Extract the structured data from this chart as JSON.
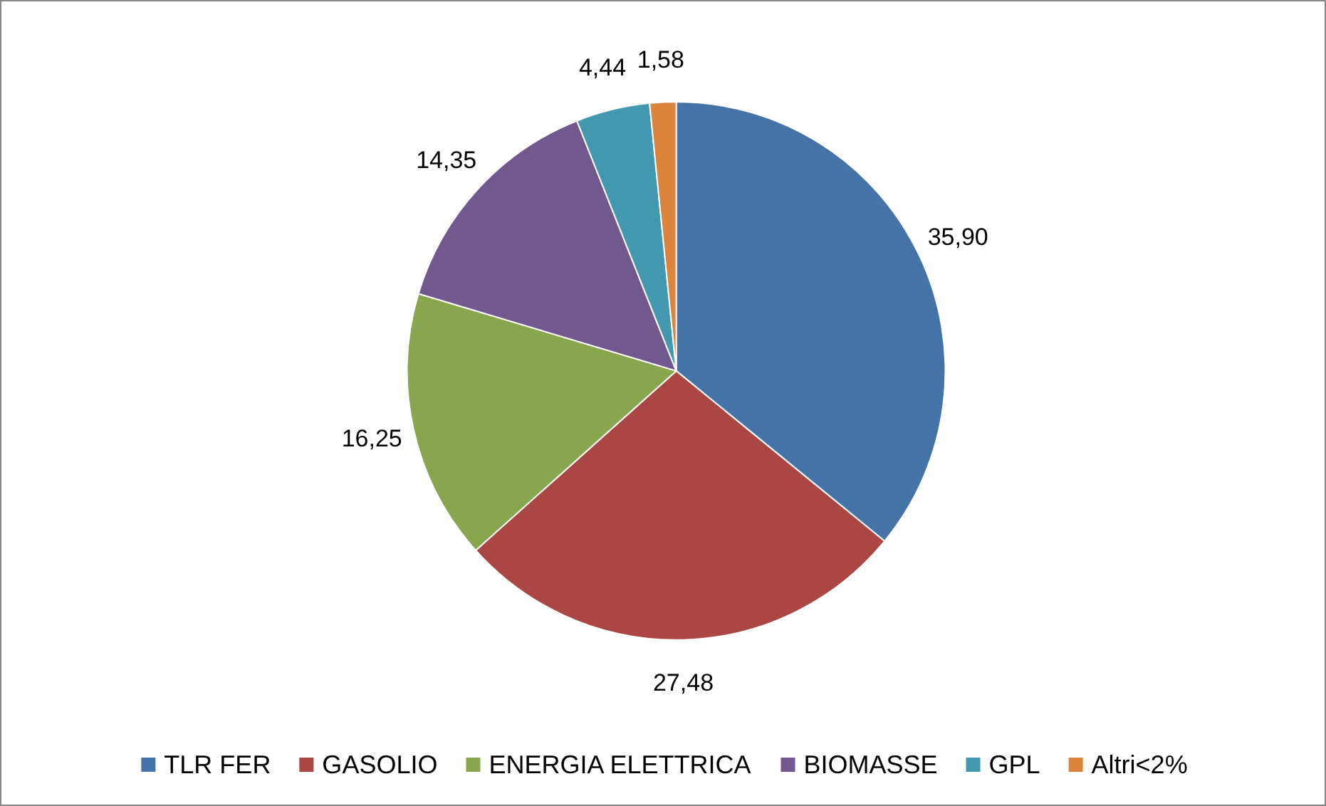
{
  "chart_data": {
    "type": "pie",
    "categories": [
      "TLR FER",
      "GASOLIO",
      "ENERGIA ELETTRICA",
      "BIOMASSE",
      "GPL",
      "Altri<2%"
    ],
    "values": [
      35.9,
      27.48,
      16.25,
      14.35,
      4.44,
      1.58
    ],
    "value_labels": [
      "35,90",
      "27,48",
      "16,25",
      "14,35",
      "4,44",
      "1,58"
    ],
    "colors": [
      "#4572a7",
      "#aa4643",
      "#89a54e",
      "#71588f",
      "#4198af",
      "#db843d"
    ],
    "legend": "bottom"
  }
}
